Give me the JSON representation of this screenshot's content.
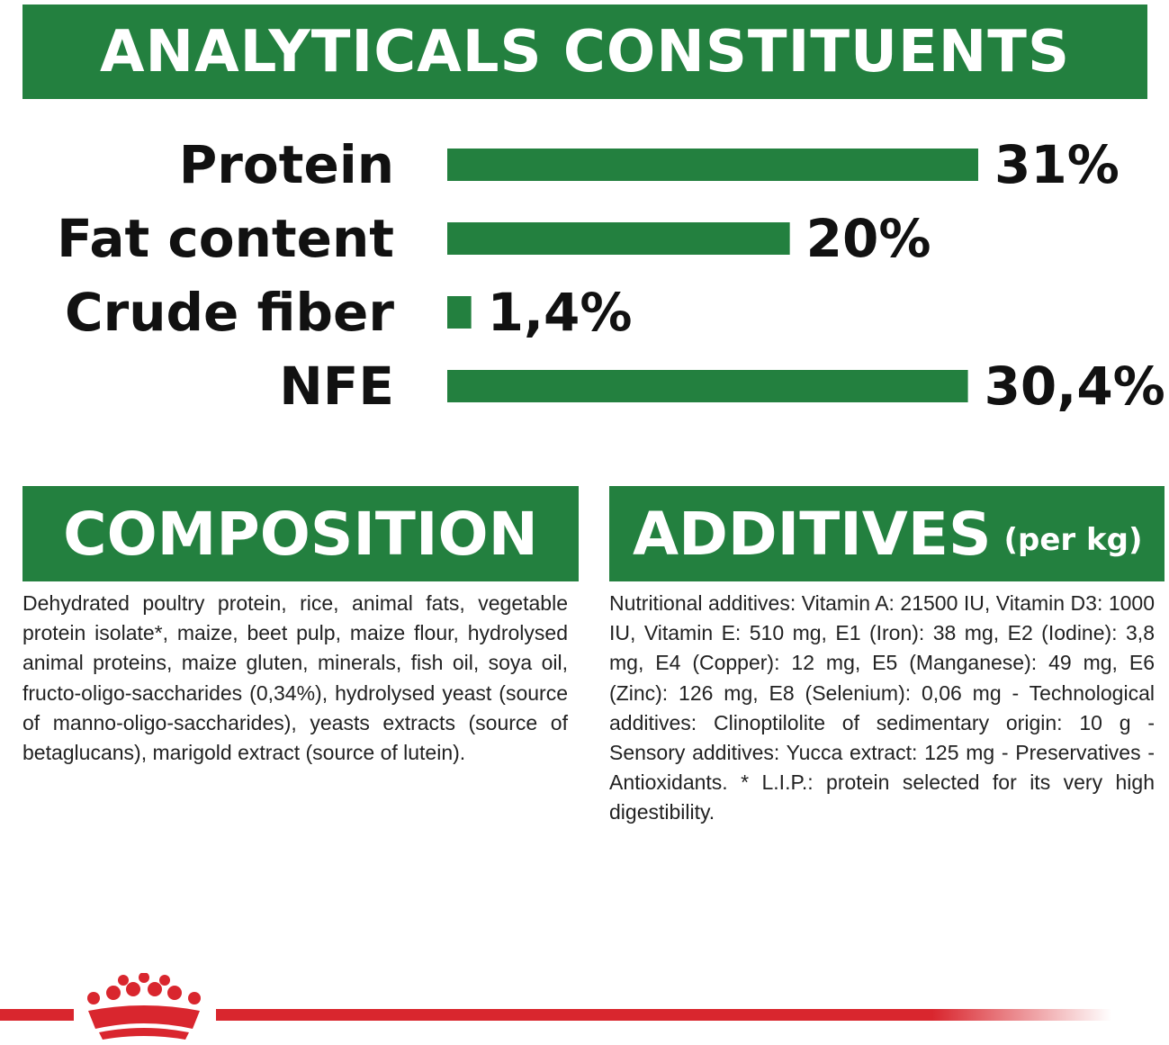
{
  "chart_data": {
    "type": "bar",
    "orientation": "horizontal",
    "title": "ANALYTICALS CONSTITUENTS",
    "categories": [
      "Protein",
      "Fat content",
      "Crude fiber",
      "NFE"
    ],
    "values": [
      31,
      20,
      1.4,
      30.4
    ],
    "value_labels": [
      "31%",
      "20%",
      "1,4%",
      "30,4%"
    ],
    "color": "#23803f"
  },
  "composition": {
    "title": "COMPOSITION",
    "text": "Dehydrated poultry protein, rice, animal fats, vegetable protein isolate*, maize, beet pulp, maize flour, hydrolysed animal proteins, maize gluten, minerals, fish oil, soya oil, fructo-oligo-saccharides (0,34%), hydrolysed yeast (source of manno-oligo-saccharides), yeasts extracts (source of betaglucans), marigold extract (source of lutein)."
  },
  "additives": {
    "title": "ADDITIVES",
    "unit": "(per kg)",
    "text": "Nutritional additives: Vitamin A: 21500 IU, Vitamin D3: 1000 IU, Vitamin E: 510 mg, E1 (Iron): 38 mg, E2 (Iodine): 3,8 mg, E4 (Copper): 12 mg, E5 (Manganese): 49 mg, E6 (Zinc): 126 mg, E8 (Selenium): 0,06 mg - Technological additives: Clinoptilolite of sedimentary origin: 10 g - Sensory additives: Yucca extract: 125 mg - Preservatives - Antioxidants. * L.I.P.: protein selected for its very high digestibility."
  }
}
